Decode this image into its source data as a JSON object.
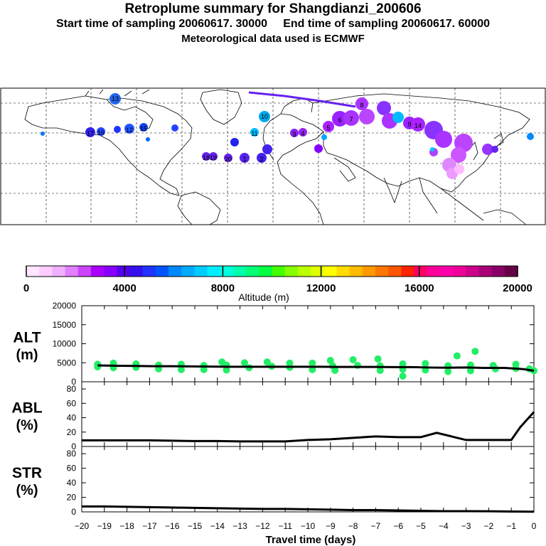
{
  "title": "Retroplume summary for Shangdianzi_200606",
  "subtitle_start": "Start time of sampling 20060617. 30000",
  "subtitle_end": "End time of sampling 20060617. 60000",
  "met_data": "Meteorological data used is ECMWF",
  "colors": {
    "palette": [
      "#ffe6ff",
      "#ffccff",
      "#f0b0ff",
      "#e080ff",
      "#cc44ff",
      "#aa00ff",
      "#8800ff",
      "#5500ee",
      "#3311ee",
      "#2233ff",
      "#0055ff",
      "#0088ff",
      "#00aaff",
      "#00ccff",
      "#00eeff",
      "#00ffdd",
      "#00ffaa",
      "#00ff77",
      "#00ff44",
      "#44ff00",
      "#88ff00",
      "#bbff00",
      "#ddff00",
      "#ffff00",
      "#ffdd00",
      "#ffbb00",
      "#ff9900",
      "#ff7700",
      "#ff5500",
      "#ff2200",
      "#ff0066",
      "#ff0099",
      "#ff00aa",
      "#ee0099",
      "#cc0088",
      "#aa0077",
      "#880066",
      "#660044"
    ],
    "line": "#000000",
    "points": "#22ee66"
  },
  "colorbar": {
    "ticks": [
      "0",
      "4000",
      "8000",
      "12000",
      "16000",
      "20000"
    ],
    "label": "Altitude (m)"
  },
  "map_markers": [
    "13",
    "10",
    "11",
    "12",
    "15",
    "16",
    "17",
    "18",
    "19",
    "20",
    "1",
    "2",
    "3",
    "4",
    "5",
    "6",
    "7",
    "8",
    "9",
    "14"
  ],
  "chart_data": [
    {
      "type": "scatter",
      "name": "ALT",
      "title": "ALT",
      "unit": "(m)",
      "ylim": [
        0,
        20000
      ],
      "yticks": [
        "0",
        "5000",
        "10000",
        "15000",
        "20000"
      ],
      "x": [
        -19.3,
        -18.4,
        -17.6,
        -16.8,
        -16,
        -15.2,
        -14.3,
        -13.5,
        -12.7,
        -11.9,
        -11,
        -10.2,
        -9.4,
        -8.6,
        -7.8,
        -7,
        -6.2,
        -5.4,
        -4.6,
        -3.8,
        -3,
        -2.2,
        -1.3,
        -0.5,
        0
      ],
      "line_values": [
        4300,
        4200,
        4150,
        4100,
        4100,
        4050,
        4000,
        3950,
        3950,
        3950,
        3950,
        3950,
        3950,
        3900,
        3900,
        3900,
        3850,
        3850,
        3750,
        3700,
        3750,
        3650,
        3650,
        3350,
        2900
      ],
      "clouds": [
        [
          -19.3,
          4600
        ],
        [
          -19.3,
          3900
        ],
        [
          -18.6,
          4900
        ],
        [
          -18.6,
          3700
        ],
        [
          -17.6,
          4700
        ],
        [
          -17.6,
          3800
        ],
        [
          -16.6,
          4400
        ],
        [
          -16.6,
          3400
        ],
        [
          -15.6,
          4600
        ],
        [
          -15.6,
          3200
        ],
        [
          -14.6,
          4300
        ],
        [
          -14.6,
          3200
        ],
        [
          -13.8,
          5200
        ],
        [
          -13.6,
          4400
        ],
        [
          -13.6,
          3100
        ],
        [
          -12.8,
          5000
        ],
        [
          -12.6,
          3700
        ],
        [
          -11.8,
          5200
        ],
        [
          -11.6,
          4100
        ],
        [
          -10.8,
          4900
        ],
        [
          -10.8,
          3800
        ],
        [
          -9.8,
          4900
        ],
        [
          -9.8,
          3200
        ],
        [
          -9,
          5600
        ],
        [
          -8.9,
          4200
        ],
        [
          -8.8,
          3000
        ],
        [
          -8,
          5800
        ],
        [
          -7.8,
          4300
        ],
        [
          -6.9,
          6000
        ],
        [
          -6.8,
          4200
        ],
        [
          -6.8,
          3000
        ],
        [
          -5.8,
          4700
        ],
        [
          -5.8,
          3300
        ],
        [
          -5.8,
          1500
        ],
        [
          -4.8,
          4800
        ],
        [
          -4.8,
          3100
        ],
        [
          -3.8,
          4200
        ],
        [
          -3.8,
          2700
        ],
        [
          -3.4,
          6800
        ],
        [
          -2.8,
          4400
        ],
        [
          -2.8,
          2900
        ],
        [
          -2.6,
          8000
        ],
        [
          -1.8,
          4300
        ],
        [
          -1.7,
          3400
        ],
        [
          -0.8,
          4600
        ],
        [
          -0.8,
          3500
        ],
        [
          -0.2,
          3400
        ],
        [
          0,
          2900
        ]
      ],
      "ylabel": "ALT"
    },
    {
      "type": "line",
      "name": "ABL",
      "title": "ABL",
      "unit": "(%)",
      "ylim": [
        0,
        90
      ],
      "yticks": [
        "0",
        "20",
        "40",
        "60",
        "80"
      ],
      "x": [
        -20,
        -19,
        -18,
        -17,
        -16,
        -15,
        -14,
        -13,
        -12,
        -11,
        -10,
        -9,
        -8,
        -7,
        -6,
        -5,
        -4.3,
        -3,
        -2,
        -1,
        -0.6,
        0
      ],
      "values": [
        8.5,
        8.5,
        8.5,
        8.5,
        8,
        7.5,
        7.5,
        7,
        7,
        7,
        9,
        10,
        12,
        14,
        13,
        13,
        19,
        9,
        9,
        9,
        27,
        48
      ]
    },
    {
      "type": "line",
      "name": "STR",
      "title": "STR",
      "unit": "(%)",
      "ylim": [
        0,
        90
      ],
      "yticks": [
        "0",
        "20",
        "40",
        "60",
        "80"
      ],
      "x": [
        -20,
        -19,
        -18,
        -17,
        -16,
        -15,
        -14,
        -13,
        -12,
        -11,
        -10,
        -9,
        -8,
        -7,
        -6,
        -5,
        -4,
        -3,
        -2,
        -1,
        0
      ],
      "values": [
        7.5,
        7.5,
        7,
        6.5,
        6,
        5.5,
        5,
        4.5,
        4,
        4,
        3.5,
        3,
        2.5,
        2.5,
        2,
        1.5,
        1,
        1,
        0.8,
        0.5,
        0.3
      ]
    }
  ],
  "xaxis": {
    "ticks": [
      "−20",
      "−19",
      "−18",
      "−17",
      "−16",
      "−15",
      "−14",
      "−13",
      "−12",
      "−11",
      "−10",
      "−9",
      "−8",
      "−7",
      "−6",
      "−5",
      "−4",
      "−3",
      "−2",
      "−1",
      "0"
    ],
    "label": "Travel time (days)"
  }
}
